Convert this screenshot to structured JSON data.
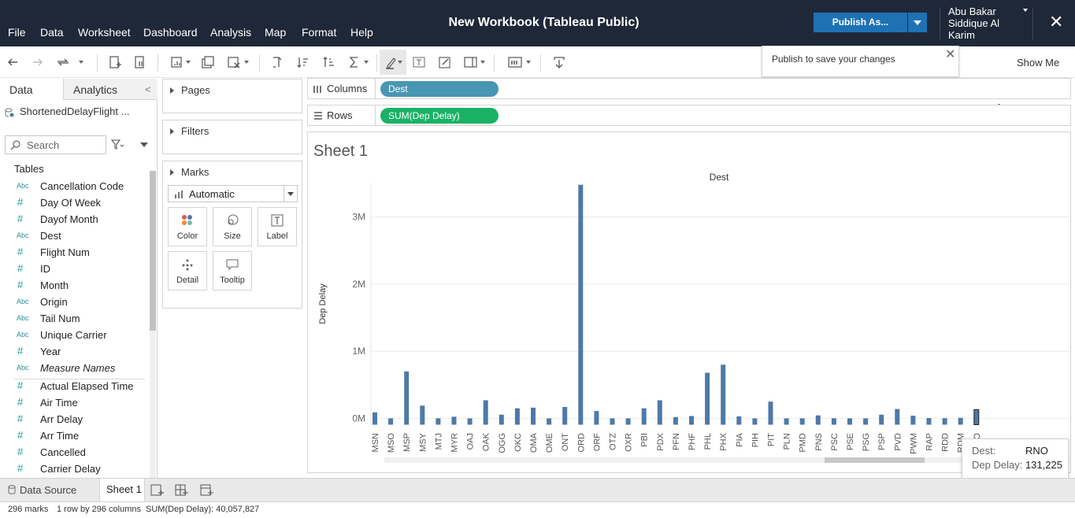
{
  "app": {
    "menu": [
      "File",
      "Data",
      "Worksheet",
      "Dashboard",
      "Analysis",
      "Map",
      "Format",
      "Help"
    ],
    "title": "New Workbook (Tableau Public)",
    "publish_label": "Publish As...",
    "user_name": "Abu Bakar Siddique Al Karim",
    "publish_tip": "Publish to save your changes",
    "show_me": "Show Me"
  },
  "left_pane": {
    "tab_data": "Data",
    "tab_analytics": "Analytics",
    "datasource": "ShortenedDelayFlight ...",
    "search_placeholder": "Search",
    "tables_label": "Tables",
    "dimensions": [
      {
        "type": "Abc",
        "name": "Cancellation Code"
      },
      {
        "type": "#",
        "name": "Day Of Week"
      },
      {
        "type": "#",
        "name": "Dayof Month"
      },
      {
        "type": "Abc",
        "name": "Dest"
      },
      {
        "type": "#",
        "name": "Flight Num"
      },
      {
        "type": "#",
        "name": "ID"
      },
      {
        "type": "#",
        "name": "Month"
      },
      {
        "type": "Abc",
        "name": "Origin"
      },
      {
        "type": "Abc",
        "name": "Tail Num"
      },
      {
        "type": "Abc",
        "name": "Unique Carrier"
      },
      {
        "type": "#",
        "name": "Year"
      },
      {
        "type": "Abc",
        "name": "Measure Names"
      }
    ],
    "measures": [
      {
        "type": "#",
        "name": "Actual Elapsed Time"
      },
      {
        "type": "#",
        "name": "Air Time"
      },
      {
        "type": "#",
        "name": "Arr Delay"
      },
      {
        "type": "#",
        "name": "Arr Time"
      },
      {
        "type": "#",
        "name": "Cancelled"
      },
      {
        "type": "#",
        "name": "Carrier Delay"
      }
    ]
  },
  "cards": {
    "pages": "Pages",
    "filters": "Filters",
    "marks": "Marks",
    "mark_type": "Automatic",
    "buttons": [
      "Color",
      "Size",
      "Label",
      "Detail",
      "Tooltip"
    ]
  },
  "shelves": {
    "columns_label": "Columns",
    "columns_pill": "Dest",
    "rows_label": "Rows",
    "rows_pill": "SUM(Dep Delay)",
    "columns_color": "#4996b2",
    "rows_color": "#1ab265"
  },
  "sheet": {
    "title": "Sheet 1"
  },
  "chart_data": {
    "type": "bar",
    "title": "Dest",
    "xlabel": "",
    "ylabel": "Dep Delay",
    "ylim": [
      -100000,
      3500000
    ],
    "yticks": [
      {
        "value": 0,
        "label": "0M"
      },
      {
        "value": 1000000,
        "label": "1M"
      },
      {
        "value": 2000000,
        "label": "2M"
      },
      {
        "value": 3000000,
        "label": "3M"
      }
    ],
    "bar_color": "#4e79a7",
    "categories": [
      "MSN",
      "MSO",
      "MSP",
      "MSY",
      "MTJ",
      "MYR",
      "OAJ",
      "OAK",
      "OGG",
      "OKC",
      "OMA",
      "OME",
      "ONT",
      "ORD",
      "ORF",
      "OTZ",
      "OXR",
      "PBI",
      "PDX",
      "PFN",
      "PHF",
      "PHL",
      "PHX",
      "PIA",
      "PIH",
      "PIT",
      "PLN",
      "PMD",
      "PNS",
      "PSC",
      "PSE",
      "PSG",
      "PSP",
      "PVD",
      "PWM",
      "RAP",
      "RDD",
      "RDM",
      "RNO"
    ],
    "tick_labels": [
      "MSN",
      "MSO",
      "MSP",
      "MSY",
      "MTJ",
      "MYR",
      "OAJ",
      "OAK",
      "OGG",
      "OKC",
      "OMA",
      "OME",
      "ONT",
      "ORD",
      "ORF",
      "OTZ",
      "OXR",
      "PBI",
      "PDX",
      "PFN",
      "PHF",
      "PHL",
      "PHX",
      "PIA",
      "PIH",
      "PIT",
      "PLN",
      "PMD",
      "PNS",
      "PSC",
      "PSE",
      "PSG",
      "PSP",
      "PVD",
      "PWM",
      "RAP",
      "RDD",
      "RDM",
      "RNO"
    ],
    "values": [
      90000,
      2000,
      700000,
      190000,
      2000,
      25000,
      1000,
      270000,
      55000,
      150000,
      160000,
      1000,
      170000,
      3480000,
      110000,
      1000,
      1000,
      150000,
      270000,
      20000,
      35000,
      680000,
      800000,
      30000,
      1000,
      250000,
      1000,
      1000,
      45000,
      2000,
      1000,
      1000,
      55000,
      140000,
      40000,
      5000,
      3000,
      8000,
      131225
    ],
    "highlighted": "RNO"
  },
  "tooltip": {
    "dest_label": "Dest:",
    "dest_value": "RNO",
    "delay_label": "Dep Delay:",
    "delay_value": "131,225"
  },
  "bottom": {
    "datasource_tab": "Data Source",
    "sheet_tab": "Sheet 1",
    "status_marks": "296 marks",
    "status_rows": "1 row by 296 columns",
    "status_sum": "SUM(Dep Delay): 40,057,827"
  }
}
